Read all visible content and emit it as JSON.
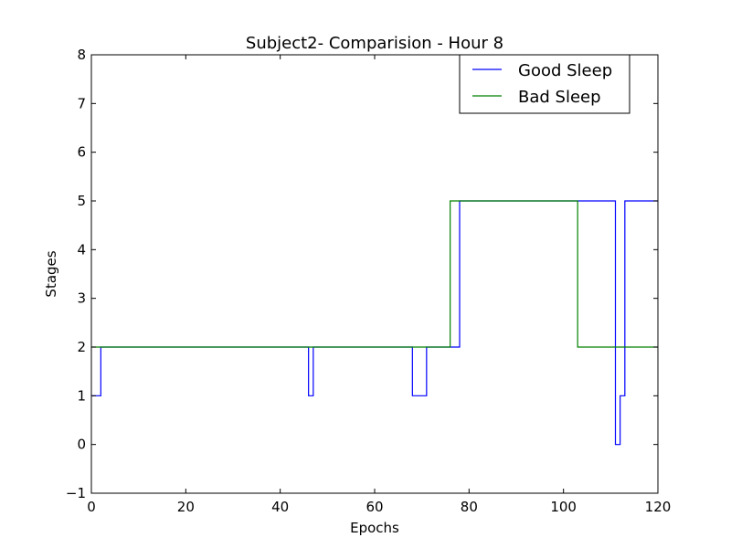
{
  "chart_data": {
    "type": "line",
    "step": true,
    "title": "Subject2- Comparision - Hour 8",
    "xlabel": "Epochs",
    "ylabel": "Stages",
    "xlim": [
      0,
      120
    ],
    "ylim": [
      -1,
      8
    ],
    "xticks": [
      0,
      20,
      40,
      60,
      80,
      100,
      120
    ],
    "yticks": [
      -1,
      0,
      1,
      2,
      3,
      4,
      5,
      6,
      7,
      8
    ],
    "xtick_labels": [
      "0",
      "20",
      "40",
      "60",
      "80",
      "100",
      "120"
    ],
    "ytick_labels": [
      "−1",
      "0",
      "1",
      "2",
      "3",
      "4",
      "5",
      "6",
      "7",
      "8"
    ],
    "legend_position": "top-right",
    "series": [
      {
        "name": "Good Sleep",
        "color": "#0000ff",
        "x": [
          0,
          2,
          46,
          47,
          68,
          71,
          78,
          111,
          112,
          113,
          120
        ],
        "y": [
          1,
          2,
          1,
          2,
          1,
          2,
          5,
          0,
          1,
          5,
          5
        ]
      },
      {
        "name": "Bad Sleep",
        "color": "#008000",
        "x": [
          0,
          76,
          103,
          120
        ],
        "y": [
          2,
          5,
          2,
          2
        ]
      }
    ]
  }
}
